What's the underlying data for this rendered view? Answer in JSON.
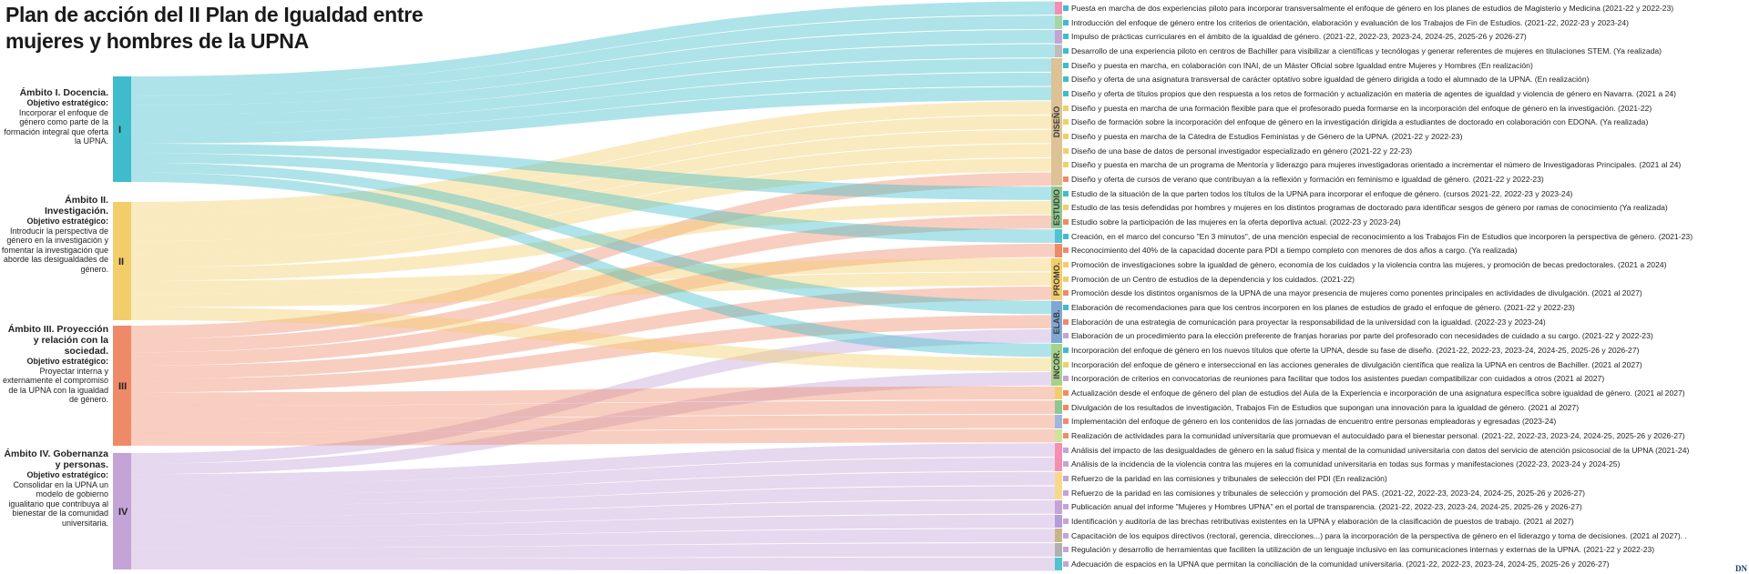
{
  "title_lines": [
    "Plan de acción del II Plan de Igualdad entre",
    "mujeres y hombres de la UPNA"
  ],
  "ambitos": [
    {
      "numeral": "I",
      "heading": "Ámbito I. Docencia.",
      "obj_label": "Objetivo estratégico:",
      "obj_text": "Incorporar el enfoque de género como parte de la formación integral que oferta la UPNA.",
      "color": "#3fbccb"
    },
    {
      "numeral": "II",
      "heading": "Ámbito II. Investigación.",
      "obj_label": "Objetivo estratégico:",
      "obj_text": "Introducir la perspectiva de género en la investigación y fomentar la investigación que aborde las desigualdades de género.",
      "color": "#f2ce6a"
    },
    {
      "numeral": "III",
      "heading": "Ámbito III. Proyección y relación con la sociedad.",
      "obj_label": "Objetivo estratégico:",
      "obj_text": "Proyectar interna y externamente el compromiso de la UPNA con la igualdad de género.",
      "color": "#ef8a69"
    },
    {
      "numeral": "IV",
      "heading": "Ámbito IV. Gobernanza y personas.",
      "obj_label": "Objetivo estratégico:",
      "obj_text": "Consolidar en la UPNA un modelo de gobierno igualitario que contribuya al bienestar de la comunidad universitaria.",
      "color": "#c4a3d6"
    }
  ],
  "categories": [
    {
      "label": "DISEÑO",
      "color": "#dcc296"
    },
    {
      "label": "ESTUDIO",
      "color": "#8fc78f"
    },
    {
      "label": "PROMO.",
      "color": "#f2ce6a"
    },
    {
      "label": "ELAB.",
      "color": "#7fa7d3"
    },
    {
      "label": "INCOR.",
      "color": "#a8d28a"
    }
  ],
  "actions": [
    {
      "text": "Puesta en marcha de dos experiencias piloto para incorporar transversalmente el enfoque de género en los planes de estudios de Magisterio y Medicina (2021-22 y 2022-23)",
      "color": "#3fbccb"
    },
    {
      "text": "Introducción del enfoque de género entre los criterios de orientación, elaboración y evaluación de los Trabajos de Fin de Estudios. (2021-22, 2022-23 y 2023-24)",
      "color": "#3fbccb"
    },
    {
      "text": "Impulso de prácticas curriculares en el ámbito de la igualdad de género. (2021-22, 2022-23, 2023-24, 2024-25, 2025-26 y 2026-27)",
      "color": "#3fbccb"
    },
    {
      "text": "Desarrollo de una experiencia piloto en centros de Bachiller para visibilizar a científicas y tecnólogas y generar referentes de mujeres en titulaciones STEM. (Ya realizada)",
      "color": "#3fbccb"
    },
    {
      "text": "Diseño y puesta en marcha, en colaboración con INAI, de un Máster Oficial sobre Igualdad entre Mujeres y Hombres (En realización)",
      "color": "#3fbccb"
    },
    {
      "text": "Diseño y oferta de una asignatura transversal de carácter optativo sobre igualdad de género dirigida a todo el alumnado de la UPNA. (En realización)",
      "color": "#3fbccb"
    },
    {
      "text": "Diseño y oferta de títulos propios que den respuesta a los retos de formación y actualización en materia de agentes de igualdad y violencia de género en Navarra. (2021 a 24)",
      "color": "#3fbccb"
    },
    {
      "text": "Diseño y puesta en marcha de una formación flexible para que el profesorado pueda formarse en la incorporación del enfoque de género en la investigación. (2021-22)",
      "color": "#f2ce6a"
    },
    {
      "text": "Diseño de formación sobre la incorporación del enfoque de género en la investigación dirigida a estudiantes de doctorado en colaboración con EDONA. (Ya realizada)",
      "color": "#f2ce6a"
    },
    {
      "text": "Diseño y puesta en marcha de la Cátedra de Estudios Feministas y de Género de la UPNA. (2021-22 y 2022-23)",
      "color": "#f2ce6a"
    },
    {
      "text": "Diseño de una base de datos de personal investigador especializado en género (2021-22 y 22-23)",
      "color": "#f2ce6a"
    },
    {
      "text": "Diseño y puesta en marcha de un programa de Mentoría y liderazgo para mujeres investigadoras orientado a incrementar el número de Investigadoras Principales. (2021 al 24)",
      "color": "#f2ce6a"
    },
    {
      "text": "Diseño y oferta de cursos de verano que contribuyan a la reflexión y formación en feminismo e igualdad de género. (2021-22 y 2022-23)",
      "color": "#ef8a69"
    },
    {
      "text": "Estudio de la situación de la que parten todos los títulos de la UPNA para incorporar el enfoque de género. (cursos 2021-22, 2022-23 y 2023-24)",
      "color": "#3fbccb"
    },
    {
      "text": "Estudio de las tesis defendidas por hombres y mujeres en los distintos programas de doctorado para identificar sesgos de género por ramas de conocimiento (Ya realizada)",
      "color": "#f2ce6a"
    },
    {
      "text": "Estudio sobre la participación de las mujeres en la oferta deportiva actual. (2022-23 y 2023-24)",
      "color": "#ef8a69"
    },
    {
      "text": "Creación, en el marco del concurso \"En 3 minutos\", de una mención especial de reconocimiento a los Trabajos Fin de Estudios que incorporen la perspectiva de género. (2021-23)",
      "color": "#3fbccb"
    },
    {
      "text": "Reconocimiento del 40% de la capacidad docente para PDI a tiempo completo con menores de dos años a cargo. (Ya realizada)",
      "color": "#ef8a69"
    },
    {
      "text": "Promoción de investigaciones sobre la igualdad de género, economía de los cuidados y la violencia contra las mujeres, y promoción de becas predoctorales. (2021 a 2024)",
      "color": "#f2ce6a"
    },
    {
      "text": "Promoción de un Centro de estudios de la dependencia y los cuidados. (2021-22)",
      "color": "#f2ce6a"
    },
    {
      "text": "Promoción desde los distintos organismos de la UPNA de una mayor presencia de mujeres como ponentes principales en actividades de divulgación. (2021 al 2027)",
      "color": "#ef8a69"
    },
    {
      "text": "Elaboración de recomendaciones para que los centros incorporen en los planes de estudios de grado el enfoque de género. (2021-22 y 2022-23)",
      "color": "#3fbccb"
    },
    {
      "text": "Elaboración de una estrategia de comunicación para proyectar la responsabilidad de la universidad con la igualdad. (2022-23 y 2023-24)",
      "color": "#ef8a69"
    },
    {
      "text": "Elaboración de un procedimiento para la elección preferente de franjas horarias por parte del profesorado con necesidades de cuidado a su cargo. (2021-22 y 2022-23)",
      "color": "#c4a3d6"
    },
    {
      "text": "Incorporación del enfoque de género en los nuevos títulos que oferte la UPNA, desde su fase de diseño. (2021-22, 2022-23, 2023-24, 2024-25, 2025-26 y 2026-27)",
      "color": "#3fbccb"
    },
    {
      "text": "Incorporación del enfoque de género e interseccional en las acciones generales de divulgación científica que realiza la UPNA en centros de Bachiller. (2021 al 2027)",
      "color": "#f2ce6a"
    },
    {
      "text": "Incorporación de criterios en convocatorias de reuniones para facilitar que todos los asistentes puedan compatibilizar con cuidados a otros (2021 al 2027)",
      "color": "#c4a3d6"
    },
    {
      "text": "Actualización desde el enfoque de género del plan de estudios del Aula de la Experiencia e incorporación de una asignatura específica sobre igualdad de género. (2021 al 2027)",
      "color": "#ef8a69"
    },
    {
      "text": "Divulgación de los resultados de investigación, Trabajos Fin de Estudios que supongan una innovación para la igualdad de género. (2021 al 2027)",
      "color": "#ef8a69"
    },
    {
      "text": "Implementación del enfoque de género en los contenidos de las jornadas de encuentro entre personas empleadoras y egresadas (2023-24)",
      "color": "#ef8a69"
    },
    {
      "text": "Realización de actividades para la comunidad universitaria que promuevan el autocuidado para el bienestar personal. (2021-22, 2022-23, 2023-24, 2024-25, 2025-26 y 2026-27)",
      "color": "#ef8a69"
    },
    {
      "text": "Análisis del impacto de las desigualdades de género en la salud física y mental de la comunidad universitaria con datos del servicio de atención psicosocial de la UPNA (2021-24)",
      "color": "#c4a3d6"
    },
    {
      "text": "Análisis de la incidencia de la violencia contra las mujeres en la comunidad universitaria en todas sus formas y manifestaciones (2022-23, 2023-24 y 2024-25)",
      "color": "#c4a3d6"
    },
    {
      "text": "Refuerzo de la paridad en las comisiones y tribunales de selección del PDI (En realización)",
      "color": "#c4a3d6"
    },
    {
      "text": "Refuerzo de la paridad en las comisiones y tribunales de selección y promoción del PAS. (2021-22, 2022-23, 2023-24, 2024-25, 2025-26 y 2026-27)",
      "color": "#c4a3d6"
    },
    {
      "text": "Publicación anual del informe \"Mujeres y Hombres UPNA\" en el portal de transparencia. (2021-22, 2022-23, 2023-24, 2024-25, 2025-26 y 2026-27)",
      "color": "#c4a3d6"
    },
    {
      "text": "Identificación y auditoría de las brechas retributivas existentes en la UPNA y elaboración de la clasificación de puestos de trabajo. (2021 al 2027)",
      "color": "#c4a3d6"
    },
    {
      "text": "Capacitación de los equipos directivos (rectoral, gerencia, direcciones...) para la incorporación de la perspectiva de género en el liderazgo y toma de decisiones. (2021 al 2027). .",
      "color": "#c4a3d6"
    },
    {
      "text": "Regulación y desarrollo de herramientas que faciliten la utilización de un lenguaje inclusivo en las comunicaciones internas y externas de la UPNA. (2021-22 y 2022-23)",
      "color": "#c4a3d6"
    },
    {
      "text": "Adecuación de espacios en la UPNA que permitan la conciliación de la comunidad universitaria. (2021-22, 2022-23, 2023-24, 2024-25, 2025-26 y 2026-27)",
      "color": "#c4a3d6"
    }
  ],
  "groups": [
    {
      "color": "#f48fb1"
    },
    {
      "color": "#a5d6a7"
    },
    {
      "color": "#c4a3d6"
    },
    {
      "color": "#bdbdbd"
    },
    {
      "color": "#dcc296",
      "cat": 0
    },
    {
      "color": "#8fc78f",
      "cat": 1
    },
    {
      "color": "#4fc3d0"
    },
    {
      "color": "#ef8a69"
    },
    {
      "color": "#f2ce6a",
      "cat": 2
    },
    {
      "color": "#7fa7d3",
      "cat": 3
    },
    {
      "color": "#a8d28a",
      "cat": 4
    },
    {
      "color": "#f2ce6a"
    },
    {
      "color": "#8fc78f"
    },
    {
      "color": "#9fb6e0"
    },
    {
      "color": "#cfe39a"
    },
    {
      "color": "#f48fb1"
    },
    {
      "color": "#f7d98a"
    },
    {
      "color": "#c4a3d6"
    },
    {
      "color": "#b39ddb"
    },
    {
      "color": "#c8b48a"
    },
    {
      "color": "#b0b0b0"
    },
    {
      "color": "#4fc3d0"
    }
  ],
  "footer": "DN"
}
